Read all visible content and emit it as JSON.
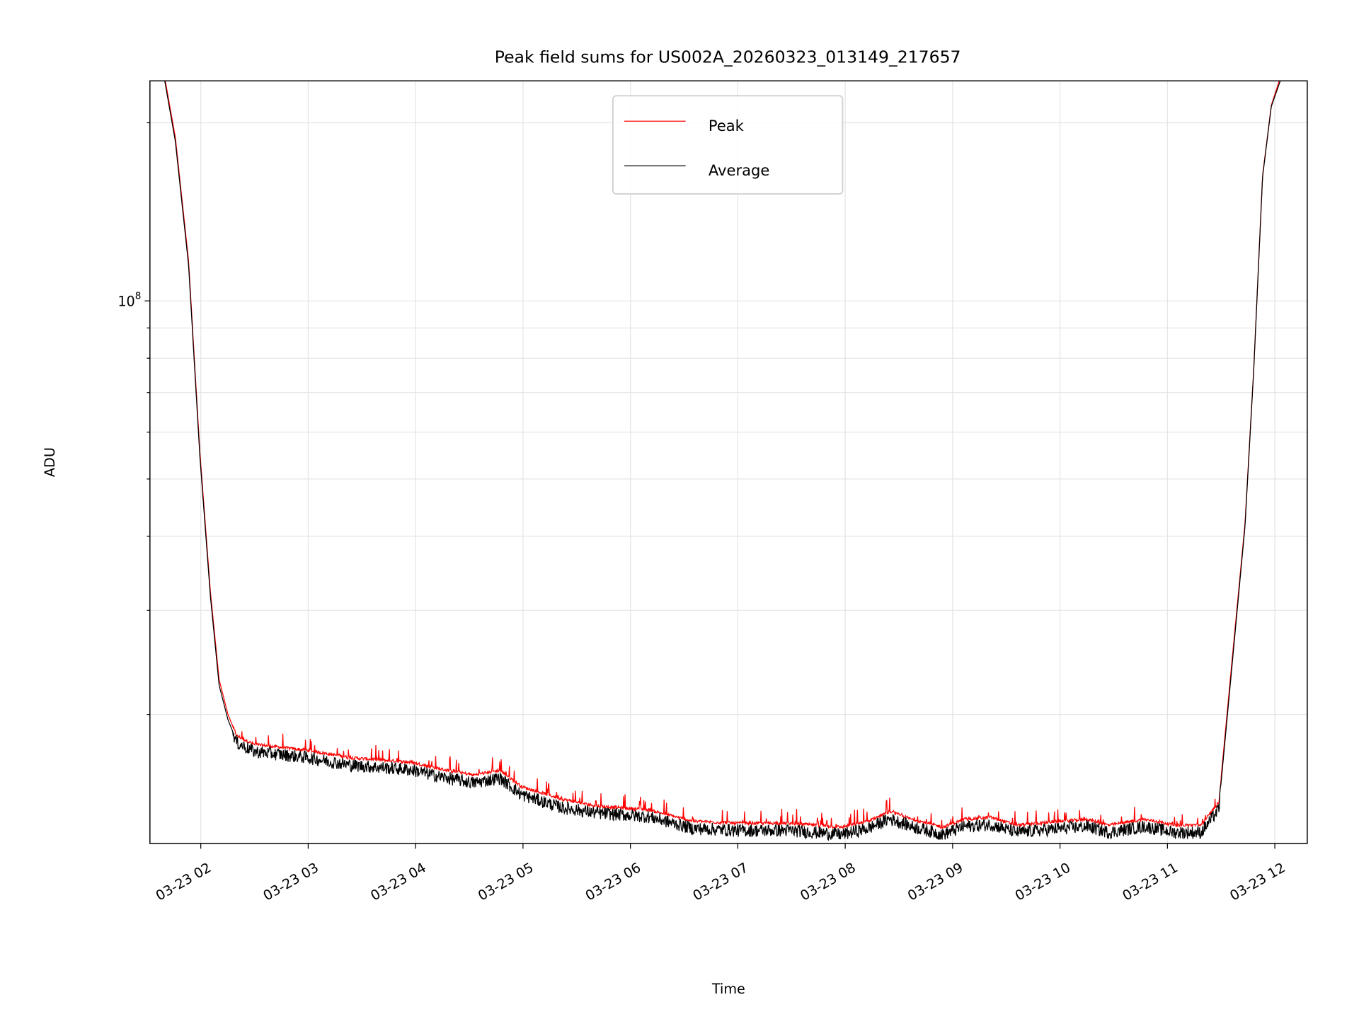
{
  "chart_data": {
    "type": "line",
    "title": "Peak field sums for US002A_20260323_013149_217657",
    "xlabel": "Time",
    "ylabel": "ADU",
    "yscale": "log",
    "ylim": [
      12100000,
      235000000
    ],
    "xlim_hours": [
      1.53,
      12.3
    ],
    "x_unit": "hours of 2026-03-23",
    "grid": true,
    "legend_position": "upper-center",
    "x_ticks": [
      {
        "hour": 2,
        "label": "03-23 02"
      },
      {
        "hour": 3,
        "label": "03-23 03"
      },
      {
        "hour": 4,
        "label": "03-23 04"
      },
      {
        "hour": 5,
        "label": "03-23 05"
      },
      {
        "hour": 6,
        "label": "03-23 06"
      },
      {
        "hour": 7,
        "label": "03-23 07"
      },
      {
        "hour": 8,
        "label": "03-23 08"
      },
      {
        "hour": 9,
        "label": "03-23 09"
      },
      {
        "hour": 10,
        "label": "03-23 10"
      },
      {
        "hour": 11,
        "label": "03-23 11"
      },
      {
        "hour": 12,
        "label": "03-23 12"
      }
    ],
    "y_major_ticks": [
      {
        "value": 100000000,
        "base": "10",
        "exp": "8"
      }
    ],
    "y_minor_ticks": [
      20000000,
      30000000,
      40000000,
      50000000,
      60000000,
      70000000,
      80000000,
      90000000,
      200000000
    ],
    "x": [
      1.53,
      1.665,
      1.763,
      1.886,
      1.992,
      2.09,
      2.171,
      2.253,
      2.335,
      2.498,
      2.988,
      3.396,
      3.967,
      4.212,
      4.539,
      4.784,
      4.988,
      5.355,
      5.682,
      6.171,
      6.58,
      6.988,
      7.478,
      7.967,
      8.212,
      8.416,
      8.62,
      8.906,
      9.11,
      9.355,
      9.6,
      10.008,
      10.253,
      10.457,
      10.784,
      11.069,
      11.314,
      11.478,
      11.6,
      11.722,
      11.804,
      11.886,
      11.967,
      12.049,
      12.131,
      12.3
    ],
    "series": [
      {
        "name": "Peak",
        "color": "#ff0000",
        "values": [
          265000000.0,
          238000000.0,
          189000000.0,
          117000000.0,
          55500000.0,
          32200000.0,
          22900000.0,
          20000000.0,
          18400000.0,
          17800000.0,
          17400000.0,
          16900000.0,
          16600000.0,
          16200000.0,
          15800000.0,
          16100000.0,
          15100000.0,
          14400000.0,
          14000000.0,
          13800000.0,
          13200000.0,
          13100000.0,
          13100000.0,
          12900000.0,
          13200000.0,
          13700000.0,
          13300000.0,
          12900000.0,
          13300000.0,
          13400000.0,
          13000000.0,
          13200000.0,
          13300000.0,
          13000000.0,
          13300000.0,
          13000000.0,
          13000000.0,
          14200000.0,
          24500000.0,
          42000000.0,
          77000000.0,
          163000000.0,
          214000000.0,
          238000000.0,
          260000000.0,
          265000000.0
        ]
      },
      {
        "name": "Average",
        "color": "#000000",
        "values": [
          260000000.0,
          235000000.0,
          186000000.0,
          115000000.0,
          54500000.0,
          31600000.0,
          22400000.0,
          19600000.0,
          18000000.0,
          17400000.0,
          17000000.0,
          16500000.0,
          16200000.0,
          15800000.0,
          15400000.0,
          15700000.0,
          14700000.0,
          14000000.0,
          13700000.0,
          13500000.0,
          12900000.0,
          12800000.0,
          12800000.0,
          12600000.0,
          12900000.0,
          13400000.0,
          13000000.0,
          12600000.0,
          13000000.0,
          13100000.0,
          12700000.0,
          12900000.0,
          13000000.0,
          12700000.0,
          13000000.0,
          12700000.0,
          12700000.0,
          13900000.0,
          24000000.0,
          41500000.0,
          76600000.0,
          162000000.0,
          213000000.0,
          235000000.0,
          255000000.0,
          260000000.0
        ]
      }
    ]
  }
}
